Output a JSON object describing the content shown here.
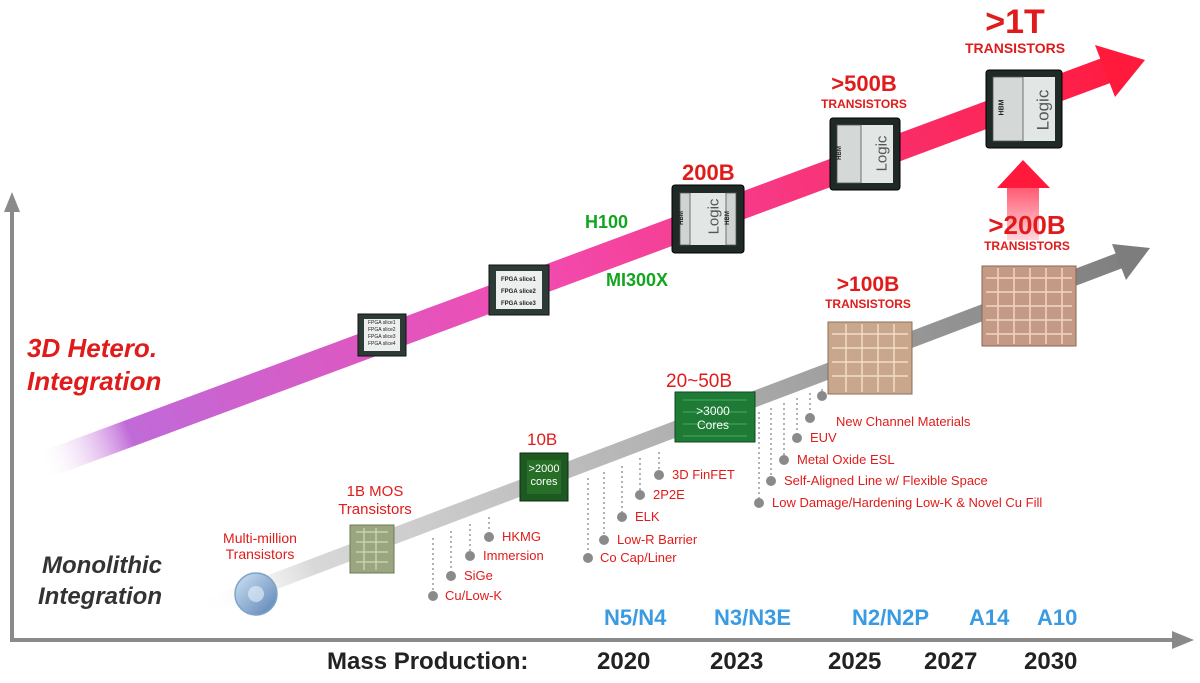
{
  "side_labels": {
    "hetero_line1": "3D Hetero.",
    "hetero_line2": "Integration",
    "mono_line1": "Monolithic",
    "mono_line2": "Integration"
  },
  "x_axis": {
    "prefix": "Mass Production:",
    "years": [
      "2020",
      "2023",
      "2025",
      "2027",
      "2030"
    ]
  },
  "nodes": [
    "N5/N4",
    "N3/N3E",
    "N2/N2P",
    "A14",
    "A10"
  ],
  "products": {
    "h100": "H100",
    "mi300x": "MI300X"
  },
  "hetero_milestones": {
    "m200b": "200B",
    "m500b": ">500B",
    "m500b_sub": "TRANSISTORS",
    "m1t": ">1T",
    "m1t_sub": "TRANSISTORS"
  },
  "mono_milestones": {
    "multi_line1": "Multi-million",
    "multi_line2": "Transistors",
    "b1_line1": "1B MOS",
    "b1_line2": "Transistors",
    "b10": "10B",
    "b2050": "20~50B",
    "b100": ">100B",
    "b100_sub": "TRANSISTORS",
    "b200": ">200B",
    "b200_sub": "TRANSISTORS"
  },
  "chip_labels": {
    "fpga_small": [
      "FPGA slice1",
      "FPGA slice2",
      "FPGA slice3",
      "FPGA slice4"
    ],
    "fpga_large": [
      "FPGA slice1",
      "FPGA slice2",
      "FPGA slice3"
    ],
    "logic": "Logic",
    "hbm": "HBM",
    "cores2000_line1": ">2000",
    "cores2000_line2": "cores",
    "cores3000_line1": ">3000",
    "cores3000_line2": "Cores"
  },
  "technologies": [
    "Cu/Low-K",
    "SiGe",
    "Immersion",
    "HKMG",
    "Co Cap/Liner",
    "Low-R Barrier",
    "ELK",
    "2P2E",
    "3D FinFET",
    "Low Damage/Hardening Low-K & Novel Cu Fill",
    "Self-Aligned Line w/ Flexible Space",
    "Metal Oxide ESL",
    "EUV",
    "New Channel Materials"
  ],
  "colors": {
    "hetero_start": "#c06ad8",
    "hetero_end": "#ff1a3c",
    "mono_arrow": "#8e8e8e",
    "label_red": "#e01b1b",
    "label_green": "#12a51f",
    "label_blue": "#3a9be3",
    "axis": "#8a8a8a"
  }
}
